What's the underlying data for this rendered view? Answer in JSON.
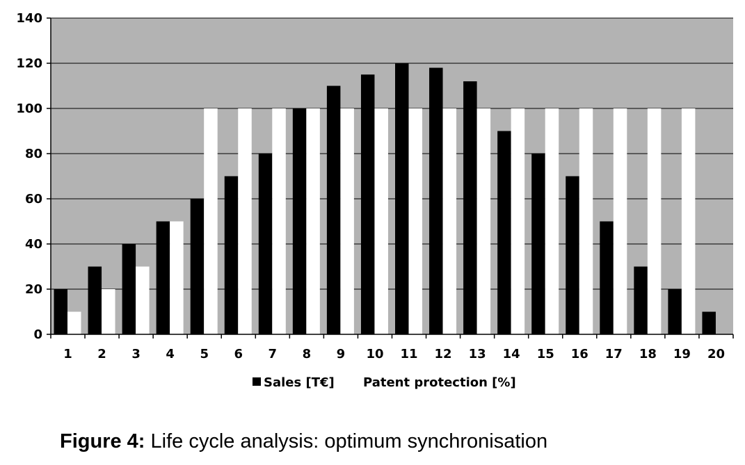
{
  "chart_data": {
    "type": "bar",
    "categories": [
      "1",
      "2",
      "3",
      "4",
      "5",
      "6",
      "7",
      "8",
      "9",
      "10",
      "11",
      "12",
      "13",
      "14",
      "15",
      "16",
      "17",
      "18",
      "19",
      "20"
    ],
    "series": [
      {
        "name": "Sales [T€]",
        "color": "#000000",
        "values": [
          20,
          30,
          40,
          50,
          60,
          70,
          80,
          100,
          110,
          115,
          120,
          118,
          112,
          90,
          80,
          70,
          50,
          30,
          20,
          10
        ]
      },
      {
        "name": "Patent protection [%]",
        "color": "#ffffff",
        "values": [
          10,
          20,
          30,
          50,
          100,
          100,
          100,
          100,
          100,
          100,
          100,
          100,
          100,
          100,
          100,
          100,
          100,
          100,
          100,
          0
        ]
      }
    ],
    "ylim": [
      0,
      140
    ],
    "yticks": [
      0,
      20,
      40,
      60,
      80,
      100,
      120,
      140
    ],
    "plot_background": "#b3b3b3",
    "grid": true,
    "legend_position": "bottom"
  },
  "caption": {
    "label": "Figure 4:",
    "text": " Life cycle analysis: optimum synchronisation"
  }
}
